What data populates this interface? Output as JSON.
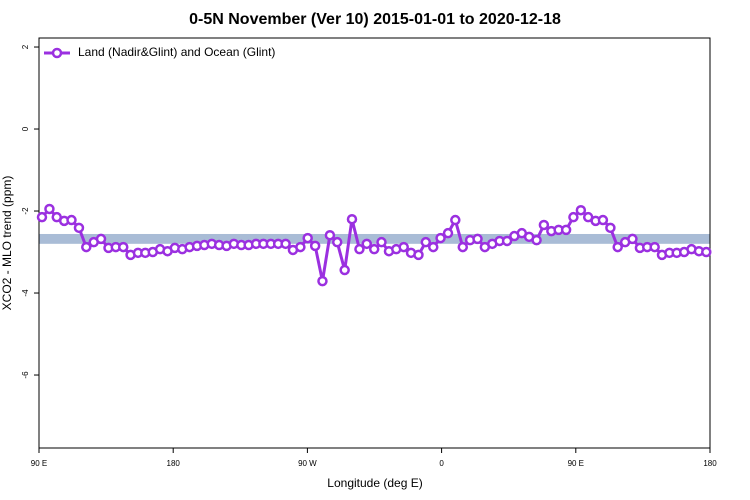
{
  "chart_data": {
    "type": "line",
    "title": "0-5N November (Ver 10)   2015-01-01 to 2020-12-18",
    "x_label": "Longitude (deg E)",
    "y_label": "XCO2 - MLO trend (ppm)",
    "xlim": [
      90,
      540
    ],
    "xticks": [
      {
        "value": 90,
        "label": "90 E"
      },
      {
        "value": 180,
        "label": "180"
      },
      {
        "value": 270,
        "label": "90 W"
      },
      {
        "value": 360,
        "label": "0"
      },
      {
        "value": 450,
        "label": "90 E"
      },
      {
        "value": 540,
        "label": "180"
      }
    ],
    "ylim": [
      -7.78,
      2.22
    ],
    "yticks": [
      2,
      0,
      -2,
      -4,
      -6
    ],
    "band": [
      -2.8,
      -2.56
    ],
    "band_color": "#a9bcd6",
    "legend": "top-left",
    "x": [
      92.0,
      97.0,
      101.9,
      106.9,
      111.8,
      116.8,
      121.7,
      126.7,
      131.6,
      136.6,
      141.5,
      146.5,
      151.4,
      156.4,
      161.3,
      166.3,
      171.2,
      176.2,
      181.1,
      186.1,
      191.0,
      196.0,
      200.9,
      205.9,
      210.8,
      215.8,
      220.7,
      225.7,
      230.6,
      235.6,
      240.5,
      245.5,
      250.4,
      255.4,
      260.3,
      265.3,
      270.2,
      275.2,
      280.1,
      285.1,
      290.0,
      295.0,
      299.9,
      304.9,
      309.8,
      314.8,
      319.7,
      324.7,
      329.6,
      334.6,
      339.5,
      344.5,
      349.4,
      354.4,
      359.3,
      364.3,
      369.2,
      374.2,
      379.1,
      384.1,
      389.0,
      394.0,
      398.9,
      403.9,
      408.8,
      413.8,
      418.7,
      423.7,
      428.6,
      433.6,
      438.5,
      443.5,
      448.4,
      453.4,
      458.3,
      463.3,
      468.2,
      473.2,
      478.1,
      483.1,
      488.0,
      493.0,
      497.9,
      502.9,
      507.8,
      512.8,
      517.7,
      522.7,
      527.6,
      532.6,
      537.5
    ],
    "series": [
      {
        "name": "Land (Nadir&Glint) and Ocean (Glint)",
        "color": "#9b30e0",
        "values": [
          -2.15,
          -1.95,
          -2.15,
          -2.24,
          -2.22,
          -2.41,
          -2.88,
          -2.76,
          -2.68,
          -2.9,
          -2.88,
          -2.88,
          -3.07,
          -3.02,
          -3.02,
          -3.0,
          -2.93,
          -2.98,
          -2.9,
          -2.93,
          -2.88,
          -2.85,
          -2.83,
          -2.8,
          -2.83,
          -2.85,
          -2.8,
          -2.83,
          -2.83,
          -2.8,
          -2.8,
          -2.8,
          -2.8,
          -2.8,
          -2.95,
          -2.88,
          -2.66,
          -2.85,
          -3.71,
          -2.59,
          -2.76,
          -3.44,
          -2.2,
          -2.93,
          -2.8,
          -2.93,
          -2.76,
          -2.98,
          -2.93,
          -2.88,
          -3.02,
          -3.07,
          -2.76,
          -2.88,
          -2.66,
          -2.54,
          -2.22,
          -2.88,
          -2.71,
          -2.68,
          -2.88,
          -2.8,
          -2.73,
          -2.73,
          -2.61,
          -2.54,
          -2.63,
          -2.71,
          -2.34,
          -2.49,
          -2.46,
          -2.46,
          -2.15,
          -1.98,
          -2.15,
          -2.24,
          -2.22,
          -2.41,
          -2.88,
          -2.76,
          -2.68,
          -2.9,
          -2.88,
          -2.88,
          -3.07,
          -3.02,
          -3.02,
          -3.0,
          -2.93,
          -2.98,
          -3.0
        ]
      }
    ]
  }
}
